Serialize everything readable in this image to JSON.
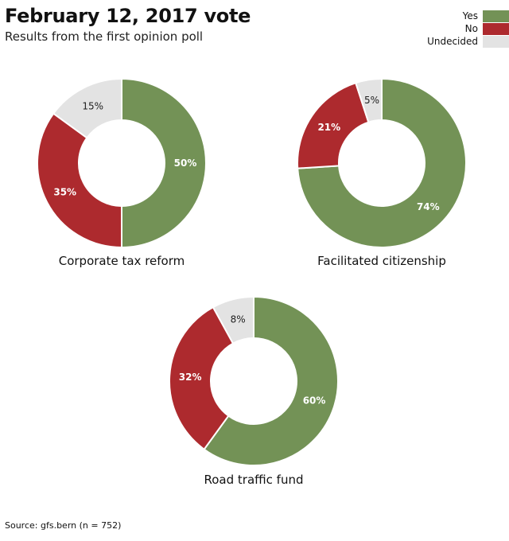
{
  "header": {
    "title": "February 12, 2017 vote",
    "subtitle": "Results from the first opinion poll"
  },
  "legend": [
    {
      "label": "Yes",
      "color": "#739256"
    },
    {
      "label": "No",
      "color": "#ad2a2e"
    },
    {
      "label": "Undecided",
      "color": "#e3e3e3"
    }
  ],
  "chart_data": [
    {
      "type": "pie",
      "donut": true,
      "title": "Corporate tax reform",
      "slices": [
        {
          "category": "Yes",
          "value": 50,
          "label": "50%"
        },
        {
          "category": "No",
          "value": 35,
          "label": "35%"
        },
        {
          "category": "Undecided",
          "value": 15,
          "label": "15%"
        }
      ]
    },
    {
      "type": "pie",
      "donut": true,
      "title": "Facilitated citizenship",
      "slices": [
        {
          "category": "Yes",
          "value": 74,
          "label": "74%"
        },
        {
          "category": "No",
          "value": 21,
          "label": "21%"
        },
        {
          "category": "Undecided",
          "value": 5,
          "label": "5%"
        }
      ]
    },
    {
      "type": "pie",
      "donut": true,
      "title": "Road traffic fund",
      "slices": [
        {
          "category": "Yes",
          "value": 60,
          "label": "60%"
        },
        {
          "category": "No",
          "value": 32,
          "label": "32%"
        },
        {
          "category": "Undecided",
          "value": 8,
          "label": "8%"
        }
      ]
    }
  ],
  "source": "Source: gfs.bern (n = 752)"
}
